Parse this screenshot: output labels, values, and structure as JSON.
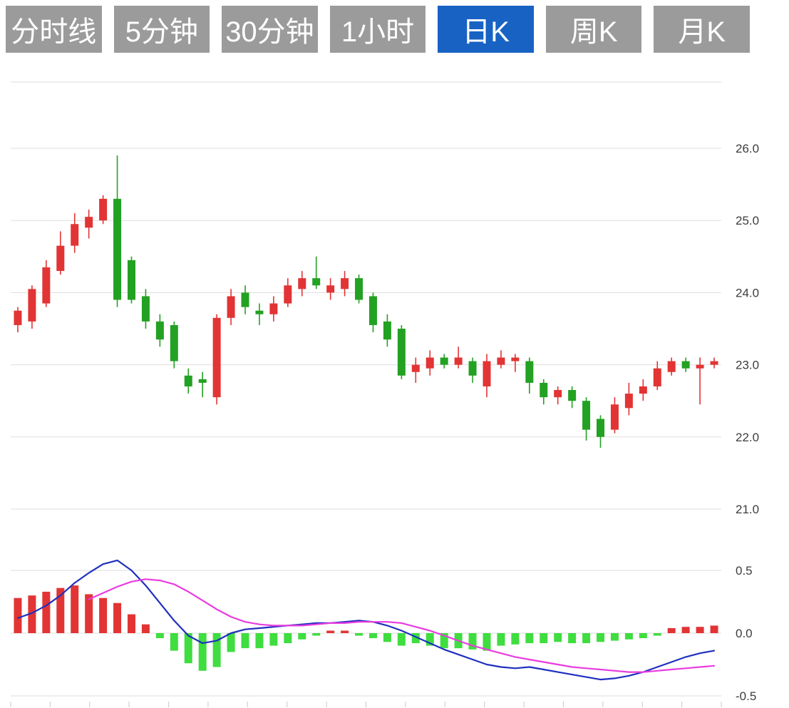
{
  "tabs": [
    {
      "label": "分时线",
      "active": false
    },
    {
      "label": "5分钟",
      "active": false
    },
    {
      "label": "30分钟",
      "active": false
    },
    {
      "label": "1小时",
      "active": false
    },
    {
      "label": "日K",
      "active": true
    },
    {
      "label": "周K",
      "active": false
    },
    {
      "label": "月K",
      "active": false
    }
  ],
  "colors": {
    "up": "#e23434",
    "down": "#23a123",
    "hist_up": "#e23434",
    "hist_down": "#3fdd3f",
    "dif_line": "#1f2fbe",
    "dea_line": "#e93cdf",
    "grid": "#dedede",
    "tick": "#c8c8c8",
    "axis_text": "#3c3c3c",
    "tab_bg": "#9b9b9b",
    "tab_active_bg": "#1862c4"
  },
  "chart_data": [
    {
      "type": "candlestick",
      "title": "",
      "xlabel": "",
      "ylabel": "",
      "legend": "none",
      "grid": true,
      "y_ticks": [
        26.0,
        25.0,
        24.0,
        23.0,
        22.0,
        21.0
      ],
      "ylim": [
        20.6,
        27.0
      ],
      "candles_format": [
        "open",
        "high",
        "low",
        "close"
      ],
      "up_means": "close >= open (red, Chinese convention)",
      "candles": [
        [
          23.55,
          23.8,
          23.45,
          23.75
        ],
        [
          23.6,
          24.1,
          23.5,
          24.05
        ],
        [
          23.85,
          24.45,
          23.8,
          24.35
        ],
        [
          24.3,
          24.85,
          24.25,
          24.65
        ],
        [
          24.65,
          25.1,
          24.55,
          24.95
        ],
        [
          24.9,
          25.15,
          24.75,
          25.05
        ],
        [
          25.0,
          25.35,
          24.95,
          25.3
        ],
        [
          25.3,
          25.9,
          23.8,
          23.9
        ],
        [
          24.45,
          24.5,
          23.85,
          23.9
        ],
        [
          23.95,
          24.05,
          23.5,
          23.6
        ],
        [
          23.6,
          23.7,
          23.25,
          23.35
        ],
        [
          23.55,
          23.6,
          22.95,
          23.05
        ],
        [
          22.85,
          22.95,
          22.6,
          22.7
        ],
        [
          22.8,
          22.9,
          22.55,
          22.75
        ],
        [
          22.55,
          23.7,
          22.45,
          23.65
        ],
        [
          23.65,
          24.05,
          23.55,
          23.95
        ],
        [
          24.0,
          24.1,
          23.7,
          23.8
        ],
        [
          23.75,
          23.85,
          23.55,
          23.7
        ],
        [
          23.7,
          23.95,
          23.6,
          23.85
        ],
        [
          23.85,
          24.2,
          23.8,
          24.1
        ],
        [
          24.05,
          24.3,
          23.95,
          24.2
        ],
        [
          24.2,
          24.5,
          24.05,
          24.1
        ],
        [
          24.0,
          24.2,
          23.9,
          24.1
        ],
        [
          24.05,
          24.3,
          23.95,
          24.2
        ],
        [
          24.2,
          24.25,
          23.85,
          23.9
        ],
        [
          23.95,
          24.0,
          23.45,
          23.55
        ],
        [
          23.6,
          23.7,
          23.25,
          23.35
        ],
        [
          23.5,
          23.55,
          22.8,
          22.85
        ],
        [
          22.9,
          23.1,
          22.75,
          23.0
        ],
        [
          22.95,
          23.2,
          22.85,
          23.1
        ],
        [
          23.1,
          23.15,
          22.95,
          23.0
        ],
        [
          23.0,
          23.25,
          22.95,
          23.1
        ],
        [
          23.05,
          23.1,
          22.75,
          22.85
        ],
        [
          22.7,
          23.15,
          22.55,
          23.05
        ],
        [
          23.0,
          23.2,
          22.95,
          23.1
        ],
        [
          23.05,
          23.15,
          22.9,
          23.1
        ],
        [
          23.05,
          23.1,
          22.6,
          22.75
        ],
        [
          22.75,
          22.8,
          22.45,
          22.55
        ],
        [
          22.55,
          22.7,
          22.45,
          22.65
        ],
        [
          22.65,
          22.7,
          22.4,
          22.5
        ],
        [
          22.5,
          22.55,
          21.95,
          22.1
        ],
        [
          22.25,
          22.3,
          21.85,
          22.0
        ],
        [
          22.1,
          22.55,
          22.05,
          22.45
        ],
        [
          22.4,
          22.75,
          22.3,
          22.6
        ],
        [
          22.6,
          22.8,
          22.5,
          22.7
        ],
        [
          22.7,
          23.05,
          22.65,
          22.95
        ],
        [
          22.9,
          23.1,
          22.85,
          23.05
        ],
        [
          23.05,
          23.1,
          22.9,
          22.95
        ],
        [
          22.95,
          23.1,
          22.45,
          23.0
        ],
        [
          23.0,
          23.1,
          22.95,
          23.05
        ]
      ]
    },
    {
      "type": "bar",
      "subtype": "macd-histogram-with-lines",
      "title": "",
      "grid": true,
      "y_ticks": [
        0.5,
        0.0,
        -0.5
      ],
      "ylim": [
        -0.6,
        0.6
      ],
      "histogram": [
        0.28,
        0.3,
        0.33,
        0.36,
        0.38,
        0.31,
        0.28,
        0.24,
        0.15,
        0.07,
        -0.04,
        -0.14,
        -0.24,
        -0.3,
        -0.27,
        -0.15,
        -0.12,
        -0.12,
        -0.1,
        -0.08,
        -0.05,
        -0.02,
        0.02,
        0.02,
        -0.02,
        -0.04,
        -0.07,
        -0.1,
        -0.08,
        -0.1,
        -0.12,
        -0.12,
        -0.13,
        -0.14,
        -0.1,
        -0.09,
        -0.08,
        -0.08,
        -0.07,
        -0.08,
        -0.08,
        -0.07,
        -0.06,
        -0.05,
        -0.04,
        -0.02,
        0.04,
        0.05,
        0.05,
        0.06
      ],
      "series": [
        {
          "name": "DIF",
          "color_key": "dif_line",
          "values": [
            0.12,
            0.16,
            0.22,
            0.3,
            0.4,
            0.48,
            0.55,
            0.58,
            0.5,
            0.38,
            0.24,
            0.1,
            -0.02,
            -0.08,
            -0.06,
            0.0,
            0.03,
            0.04,
            0.05,
            0.06,
            0.07,
            0.08,
            0.08,
            0.09,
            0.1,
            0.09,
            0.06,
            0.02,
            -0.03,
            -0.08,
            -0.13,
            -0.17,
            -0.21,
            -0.25,
            -0.27,
            -0.28,
            -0.27,
            -0.29,
            -0.31,
            -0.33,
            -0.35,
            -0.37,
            -0.36,
            -0.34,
            -0.31,
            -0.27,
            -0.23,
            -0.19,
            -0.16,
            -0.14
          ]
        },
        {
          "name": "DEA",
          "color_key": "dea_line",
          "values": [
            null,
            null,
            null,
            null,
            null,
            0.27,
            0.32,
            0.37,
            0.41,
            0.43,
            0.42,
            0.39,
            0.33,
            0.26,
            0.19,
            0.13,
            0.09,
            0.07,
            0.06,
            0.06,
            0.06,
            0.07,
            0.08,
            0.08,
            0.09,
            0.09,
            0.09,
            0.08,
            0.05,
            0.02,
            -0.02,
            -0.06,
            -0.1,
            -0.13,
            -0.16,
            -0.19,
            -0.21,
            -0.23,
            -0.25,
            -0.27,
            -0.28,
            -0.29,
            -0.3,
            -0.31,
            -0.31,
            -0.3,
            -0.29,
            -0.28,
            -0.27,
            -0.26
          ]
        }
      ]
    }
  ]
}
